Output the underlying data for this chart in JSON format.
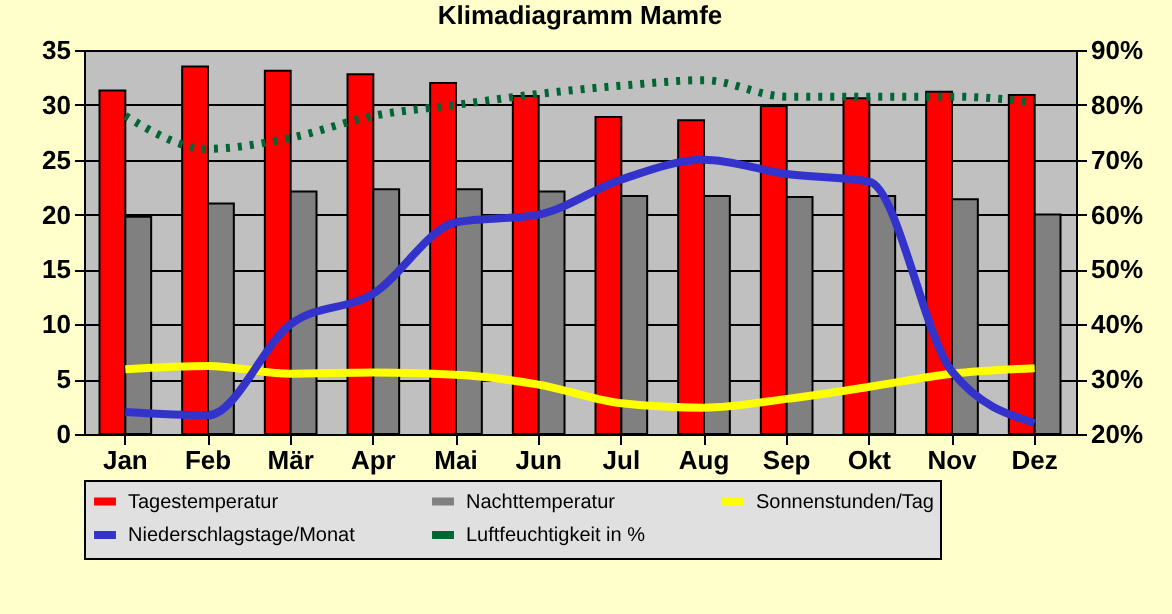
{
  "chart_data": {
    "type": "bar",
    "title": "Klimadiagramm Mamfe",
    "categories": [
      "Jan",
      "Feb",
      "Mär",
      "Apr",
      "Mai",
      "Jun",
      "Jul",
      "Aug",
      "Sep",
      "Okt",
      "Nov",
      "Dez"
    ],
    "series": [
      {
        "name": "Tagestemperatur",
        "color": "#ff0000",
        "values": [
          31.3,
          33.5,
          33.1,
          32.8,
          32.0,
          30.8,
          28.9,
          28.6,
          29.9,
          30.6,
          31.2,
          30.9
        ]
      },
      {
        "name": "Nachttemperatur",
        "color": "#808080",
        "values": [
          19.8,
          21.0,
          22.1,
          22.3,
          22.3,
          22.1,
          21.7,
          21.7,
          21.6,
          21.7,
          21.4,
          20.0
        ]
      },
      {
        "name": "Sonnenstunden/Tag",
        "type": "line",
        "color": "#ffff00",
        "line_style": "solid",
        "values": [
          5.9,
          6.2,
          5.5,
          5.6,
          5.4,
          4.5,
          2.8,
          2.4,
          3.2,
          4.3,
          5.5,
          6.0
        ]
      },
      {
        "name": "Niederschlagstage/Monat",
        "type": "line",
        "color": "#3333cc",
        "line_style": "solid",
        "values": [
          2.0,
          1.7,
          10.0,
          12.8,
          19.3,
          20.0,
          23.2,
          25.0,
          23.7,
          23.0,
          5.7,
          1.0
        ]
      },
      {
        "name": "Luftfeuchtigkeit in %",
        "type": "line",
        "axis": "y2",
        "color": "#006633",
        "line_style": "dotted",
        "values": [
          78,
          72,
          74,
          78,
          80,
          82,
          83.5,
          84.5,
          81.5,
          81.5,
          81.5,
          80.5
        ]
      }
    ],
    "ylim": [
      0,
      35
    ],
    "yticks": [
      0,
      5,
      10,
      15,
      20,
      25,
      30,
      35
    ],
    "y2lim": [
      20,
      90
    ],
    "y2ticks": [
      {
        "value": 20,
        "label": "20%"
      },
      {
        "value": 30,
        "label": "30%"
      },
      {
        "value": 40,
        "label": "40%"
      },
      {
        "value": 50,
        "label": "50%"
      },
      {
        "value": 60,
        "label": "60%"
      },
      {
        "value": 70,
        "label": "70%"
      },
      {
        "value": 80,
        "label": "80%"
      },
      {
        "value": 90,
        "label": "90%"
      }
    ],
    "grid": "y",
    "legend": "bottom",
    "marker": "none"
  }
}
